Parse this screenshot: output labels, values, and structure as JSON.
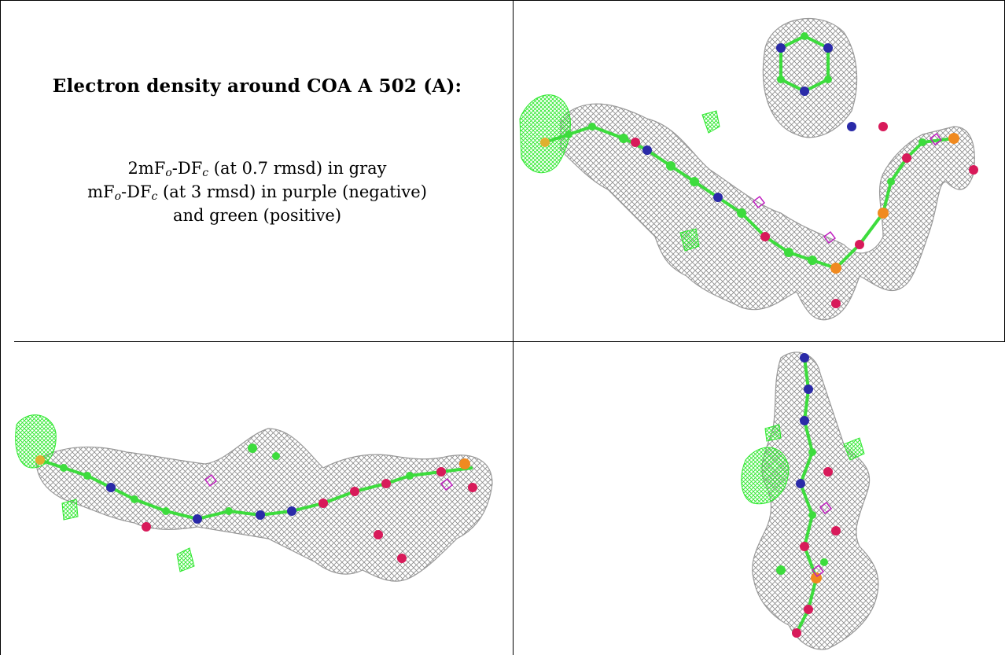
{
  "caption": {
    "title": "Electron density around COA A 502 (A):",
    "line1": {
      "prefix": "2mF",
      "sub_o": "o",
      "mid": "-DF",
      "sub_c": "c",
      "suffix": " (at 0.7 rmsd) in gray"
    },
    "line2": {
      "prefix": "mF",
      "sub_o": "o",
      "mid": "-DF",
      "sub_c": "c",
      "suffix": " (at 3 rmsd) in purple (negative)"
    },
    "line3": "and green (positive)"
  },
  "panels": [
    {
      "view": "view-1"
    },
    {
      "view": "view-2"
    },
    {
      "view": "view-3"
    }
  ],
  "colors": {
    "mesh_gray": "#8a8a8a",
    "carbon_green": "#3ddc3d",
    "positive_green": "#2ee82e",
    "negative_purple": "#c020c0",
    "nitrogen_blue": "#2a2aa8",
    "oxygen_red": "#d81a5a",
    "phosphorus_orange": "#f08a20",
    "sulfur_yellow": "#e0b030"
  }
}
